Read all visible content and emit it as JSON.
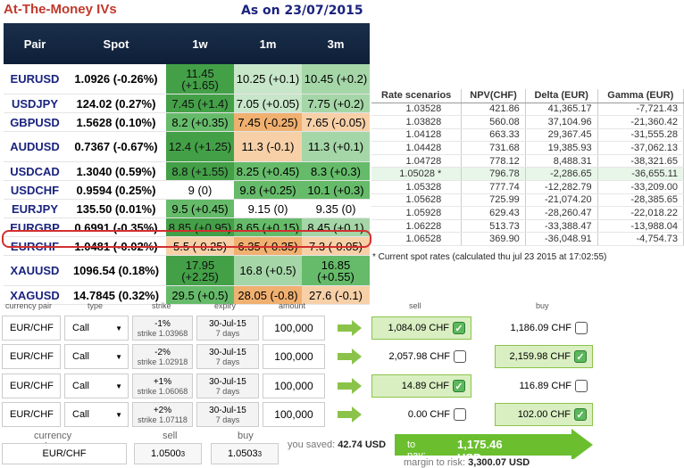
{
  "title": "At-The-Money IVs",
  "as_of": "As on 23/07/2015",
  "iv_table": {
    "headers": [
      "Pair",
      "Spot",
      "1w",
      "1m",
      "3m"
    ],
    "rows": [
      {
        "pair": "EURUSD",
        "spot": "1.0926 (-0.26%)",
        "w1": "11.45 (+1.65)",
        "m1": "10.25 (+0.1)",
        "m3": "10.45 (+0.2)"
      },
      {
        "pair": "USDJPY",
        "spot": "124.02 (0.27%)",
        "w1": "7.45 (+1.4)",
        "m1": "7.05 (+0.05)",
        "m3": "7.75 (+0.2)"
      },
      {
        "pair": "GBPUSD",
        "spot": "1.5628 (0.10%)",
        "w1": "8.2 (+0.35)",
        "m1": "7.45 (-0.25)",
        "m3": "7.65 (-0.05)"
      },
      {
        "pair": "AUDUSD",
        "spot": "0.7367 (-0.67%)",
        "w1": "12.4 (+1.25)",
        "m1": "11.3 (-0.1)",
        "m3": "11.3 (+0.1)"
      },
      {
        "pair": "USDCAD",
        "spot": "1.3040 (0.59%)",
        "w1": "8.8 (+1.55)",
        "m1": "8.25 (+0.45)",
        "m3": "8.3 (+0.3)"
      },
      {
        "pair": "USDCHF",
        "spot": "0.9594 (0.25%)",
        "w1": "9 (0)",
        "m1": "9.8 (+0.25)",
        "m3": "10.1 (+0.3)"
      },
      {
        "pair": "EURJPY",
        "spot": "135.50 (0.01%)",
        "w1": "9.5 (+0.45)",
        "m1": "9.15 (0)",
        "m3": "9.35 (0)"
      },
      {
        "pair": "EURGBP",
        "spot": "0.6991 (-0.35%)",
        "w1": "8.85 (+0.95)",
        "m1": "8.65 (+0.15)",
        "m3": "8.45 (+0.1)"
      },
      {
        "pair": "EURCHF",
        "spot": "1.0481 (-0.02%)",
        "w1": "5.5 (-0.25)",
        "m1": "6.35 (-0.35)",
        "m3": "7.3 (-0.05)"
      },
      {
        "pair": "XAUUSD",
        "spot": "1096.54 (0.18%)",
        "w1": "17.95 (+2.25)",
        "m1": "16.8 (+0.5)",
        "m3": "16.85 (+0.55)"
      },
      {
        "pair": "XAGUSD",
        "spot": "14.7845 (0.32%)",
        "w1": "29.5 (+0.5)",
        "m1": "28.05 (-0.8)",
        "m3": "27.6 (-0.1)"
      }
    ]
  },
  "scenarios": {
    "headers": [
      "Rate scenarios",
      "NPV(CHF)",
      "Delta (EUR)",
      "Gamma (EUR)"
    ],
    "rows": [
      [
        "1.03528",
        "421.86",
        "41,365.17",
        "-7,721.43"
      ],
      [
        "1.03828",
        "560.08",
        "37,104.96",
        "-21,360.42"
      ],
      [
        "1.04128",
        "663.33",
        "29,367.45",
        "-31,555.28"
      ],
      [
        "1.04428",
        "731.68",
        "19,385.93",
        "-37,062.13"
      ],
      [
        "1.04728",
        "778.12",
        "8,488.31",
        "-38,321.65"
      ],
      [
        "1.05028 *",
        "796.78",
        "-2,286.65",
        "-36,655.11"
      ],
      [
        "1.05328",
        "777.74",
        "-12,282.79",
        "-33,209.00"
      ],
      [
        "1.05628",
        "725.99",
        "-21,074.20",
        "-28,385.65"
      ],
      [
        "1.05928",
        "629.43",
        "-28,260.47",
        "-22,018.22"
      ],
      [
        "1.06228",
        "513.73",
        "-33,388.47",
        "-13,988.04"
      ],
      [
        "1.06528",
        "369.90",
        "-36,048.91",
        "-4,754.73"
      ]
    ],
    "note": "* Current spot rates (calculated thu jul 23 2015 at 17:02:55)"
  },
  "order_headers": {
    "pair": "currency pair",
    "type": "type",
    "strike": "strike",
    "expiry": "expiry",
    "amount": "amount",
    "sell": "sell",
    "buy": "buy"
  },
  "orders": [
    {
      "pair": "EUR/CHF",
      "type": "Call",
      "strike_pct": "-1%",
      "strike": "strike 1.03968",
      "expiry": "30-Jul-15",
      "days": "7 days",
      "amount": "100,000",
      "sell": "1,084.09 CHF",
      "buy": "1,186.09 CHF"
    },
    {
      "pair": "EUR/CHF",
      "type": "Call",
      "strike_pct": "-2%",
      "strike": "strike 1.02918",
      "expiry": "30-Jul-15",
      "days": "7 days",
      "amount": "100,000",
      "sell": "2,057.98 CHF",
      "buy": "2,159.98 CHF"
    },
    {
      "pair": "EUR/CHF",
      "type": "Call",
      "strike_pct": "+1%",
      "strike": "strike 1.06068",
      "expiry": "30-Jul-15",
      "days": "7 days",
      "amount": "100,000",
      "sell": "14.89 CHF",
      "buy": "116.89 CHF"
    },
    {
      "pair": "EUR/CHF",
      "type": "Call",
      "strike_pct": "+2%",
      "strike": "strike 1.07118",
      "expiry": "30-Jul-15",
      "days": "7 days",
      "amount": "100,000",
      "sell": "0.00 CHF",
      "buy": "102.00 CHF"
    }
  ],
  "summary": {
    "pair_label": "currency pair",
    "sell_label": "sell",
    "buy_label": "buy",
    "pair": "EUR/CHF",
    "sell": "1.0500",
    "sell_sub": "3",
    "buy": "1.0503",
    "buy_sub": "3",
    "saved_label": "you saved:",
    "saved": "42.74 USD",
    "pay_label": "to pay:",
    "pay": "1,175.46 USD",
    "margin_label": "margin to risk:",
    "margin": "3,300.07 USD"
  },
  "colors": {
    "header_bg": "#1b2f4b",
    "pair_text": "#1a237e",
    "title": "#c0392b",
    "highlight": "#d32f2f"
  }
}
